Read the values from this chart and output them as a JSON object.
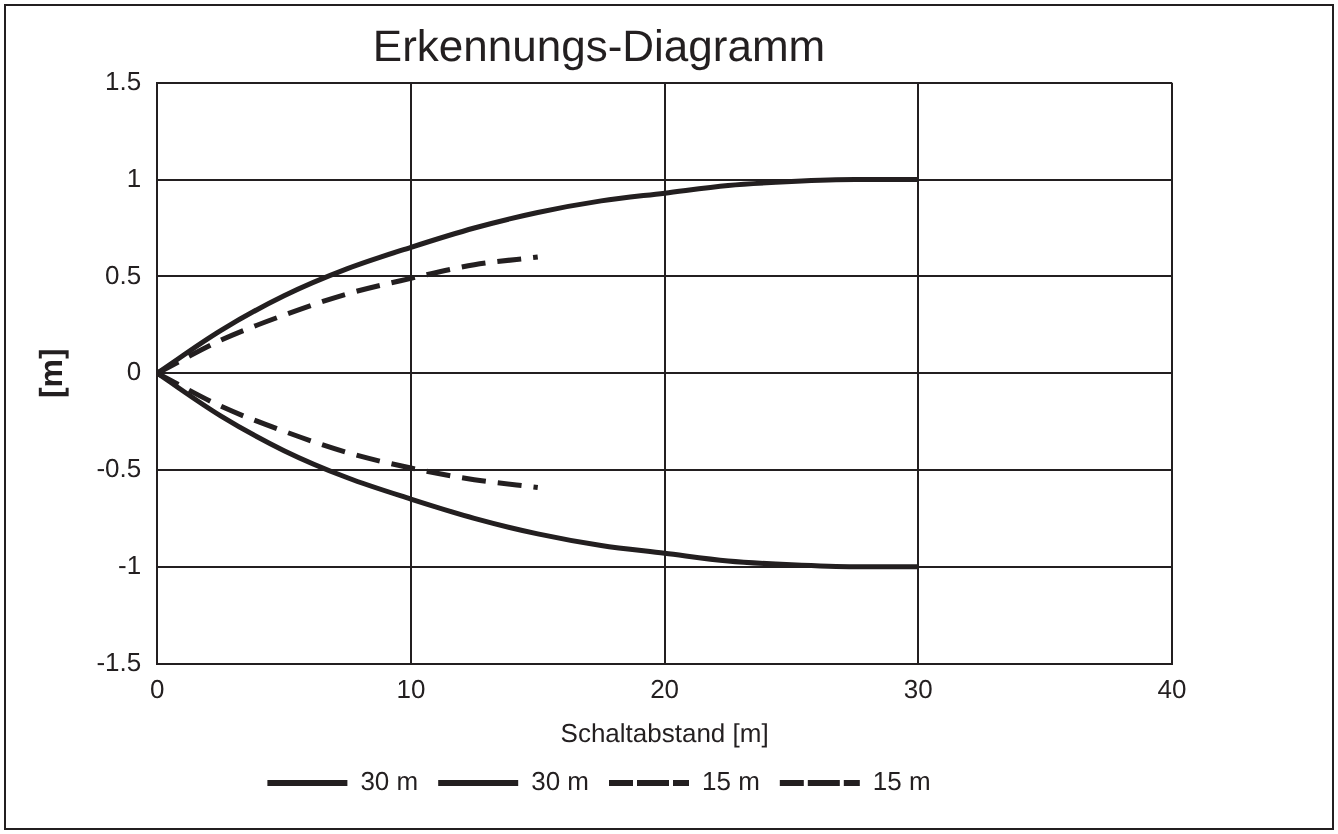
{
  "chart_data": {
    "type": "line",
    "title": "Erkennungs-Diagramm",
    "xlabel": "Schaltabstand [m]",
    "ylabel": "[m]",
    "xlim": [
      0,
      40
    ],
    "xticks": [
      0,
      10,
      20,
      30,
      40
    ],
    "ylim": [
      -1.5,
      1.5
    ],
    "yticks": [
      -1.5,
      -1,
      -0.5,
      0,
      0.5,
      1,
      1.5
    ],
    "grid": true,
    "legend": "bottom",
    "marker": "none",
    "series": [
      {
        "name": "30 m",
        "color": "#231f20",
        "line_style": "solid",
        "x": [
          0,
          2.5,
          5,
          7.5,
          10,
          12.5,
          15,
          17.5,
          20,
          22.5,
          25,
          27.5,
          30
        ],
        "values": [
          0,
          0.22,
          0.4,
          0.54,
          0.65,
          0.75,
          0.83,
          0.89,
          0.93,
          0.97,
          0.99,
          1.0,
          1.0
        ]
      },
      {
        "name": "30 m",
        "color": "#231f20",
        "line_style": "solid",
        "x": [
          0,
          2.5,
          5,
          7.5,
          10,
          12.5,
          15,
          17.5,
          20,
          22.5,
          25,
          27.5,
          30
        ],
        "values": [
          0,
          -0.22,
          -0.4,
          -0.54,
          -0.65,
          -0.75,
          -0.83,
          -0.89,
          -0.93,
          -0.97,
          -0.99,
          -1.0,
          -1.0
        ]
      },
      {
        "name": "15 m",
        "color": "#231f20",
        "line_style": "dashed",
        "x": [
          0,
          2.5,
          5,
          7.5,
          10,
          12.5,
          15
        ],
        "values": [
          0,
          0.17,
          0.3,
          0.41,
          0.49,
          0.56,
          0.6
        ]
      },
      {
        "name": "15 m",
        "color": "#231f20",
        "line_style": "dashed",
        "x": [
          0,
          2.5,
          5,
          7.5,
          10,
          12.5,
          15
        ],
        "values": [
          0,
          -0.17,
          -0.3,
          -0.41,
          -0.49,
          -0.55,
          -0.59
        ]
      }
    ]
  }
}
